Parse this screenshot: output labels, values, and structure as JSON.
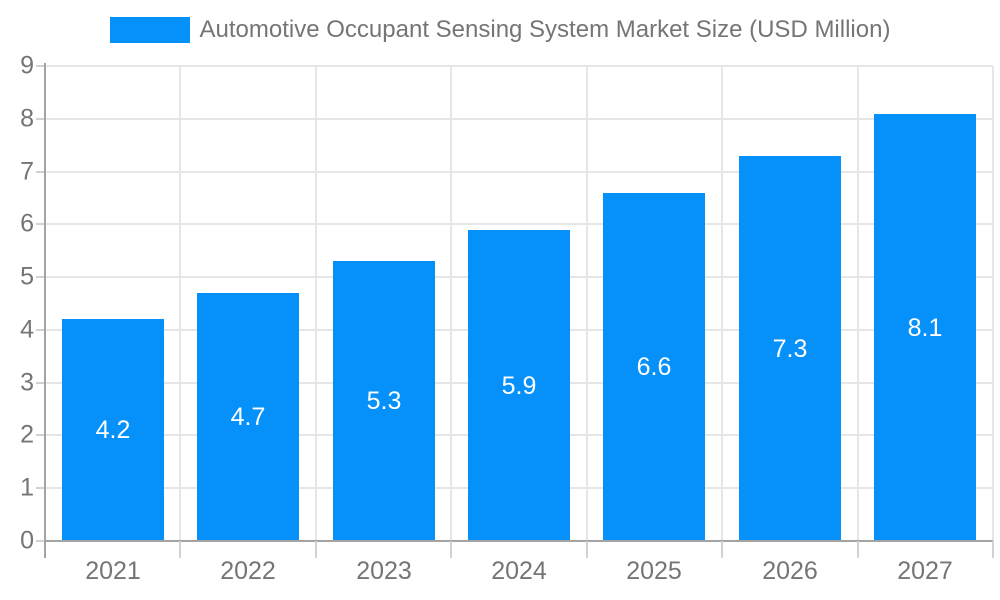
{
  "chart_data": {
    "type": "bar",
    "title": "Automotive Occupant Sensing System Market Size (USD Million)",
    "categories": [
      "2021",
      "2022",
      "2023",
      "2024",
      "2025",
      "2026",
      "2027"
    ],
    "values": [
      4.2,
      4.7,
      5.3,
      5.9,
      6.6,
      7.3,
      8.1
    ],
    "data_labels": [
      "4.2",
      "4.7",
      "5.3",
      "5.9",
      "6.6",
      "7.3",
      "8.1"
    ],
    "xlabel": "",
    "ylabel": "",
    "ylim": [
      0,
      9
    ],
    "yticks": [
      0,
      1,
      2,
      3,
      4,
      5,
      6,
      7,
      8,
      9
    ],
    "grid": true,
    "legend_position": "top-center",
    "colors": {
      "bar": "#0590fa",
      "bar_label_text": "#ffffff",
      "axis_text": "#757575",
      "gridline": "#e6e6e6",
      "axis_line": "#a3a3a3",
      "tick_mark": "#d2d2d2",
      "background": "#ffffff"
    }
  }
}
